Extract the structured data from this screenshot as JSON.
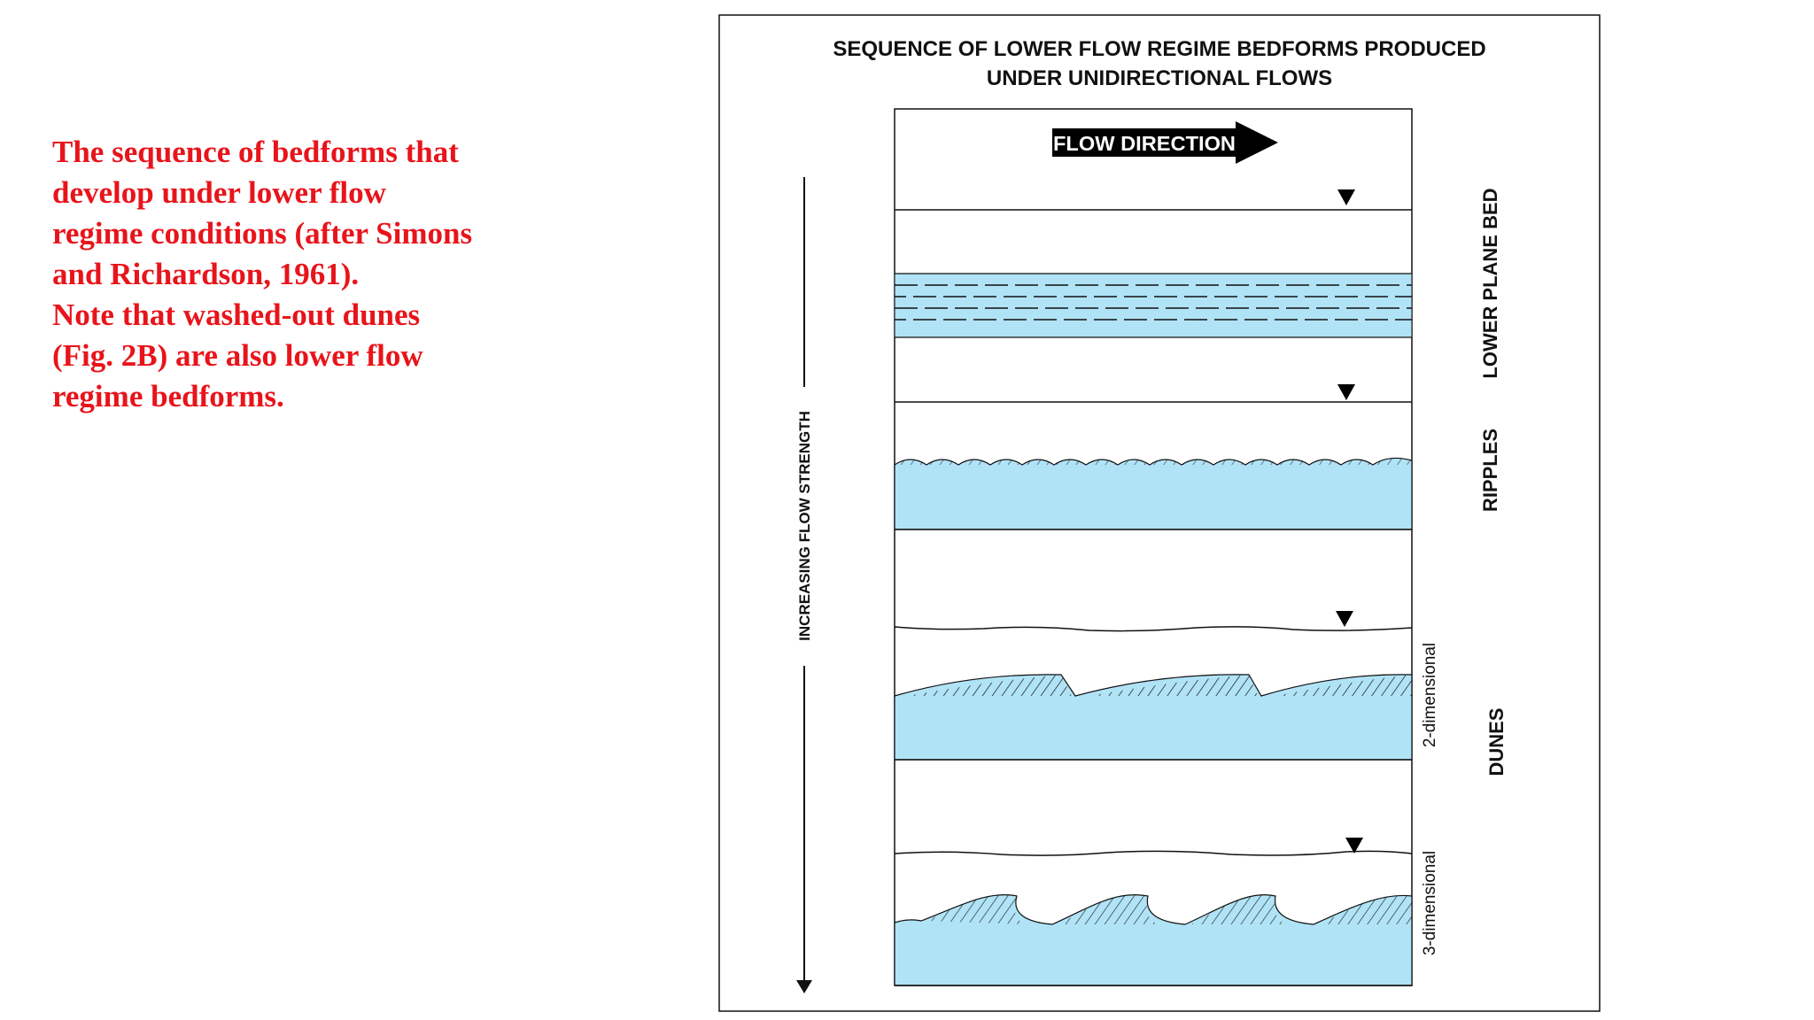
{
  "caption": {
    "lines": [
      "The sequence of bedforms that",
      "develop under lower flow",
      "regime conditions (after Simons",
      "and Richardson, 1961).",
      "Note that washed-out dunes",
      "(Fig. 2B) are also lower flow",
      "regime bedforms."
    ]
  },
  "figure": {
    "title_line1": "SEQUENCE OF LOWER FLOW REGIME BEDFORMS PRODUCED",
    "title_line2": "UNDER UNIDIRECTIONAL FLOWS",
    "flow_direction": "FLOW DIRECTION",
    "axis_label": "INCREASING FLOW STRENGTH",
    "labels": {
      "lower_plane_bed": "LOWER PLANE BED",
      "ripples": "RIPPLES",
      "dunes": "DUNES",
      "two_dimensional": "2-dimensional",
      "three_dimensional": "3-dimensional"
    },
    "colors": {
      "sediment": "#b1e3f6",
      "caption_text": "#e8141b",
      "line": "#111111"
    }
  }
}
